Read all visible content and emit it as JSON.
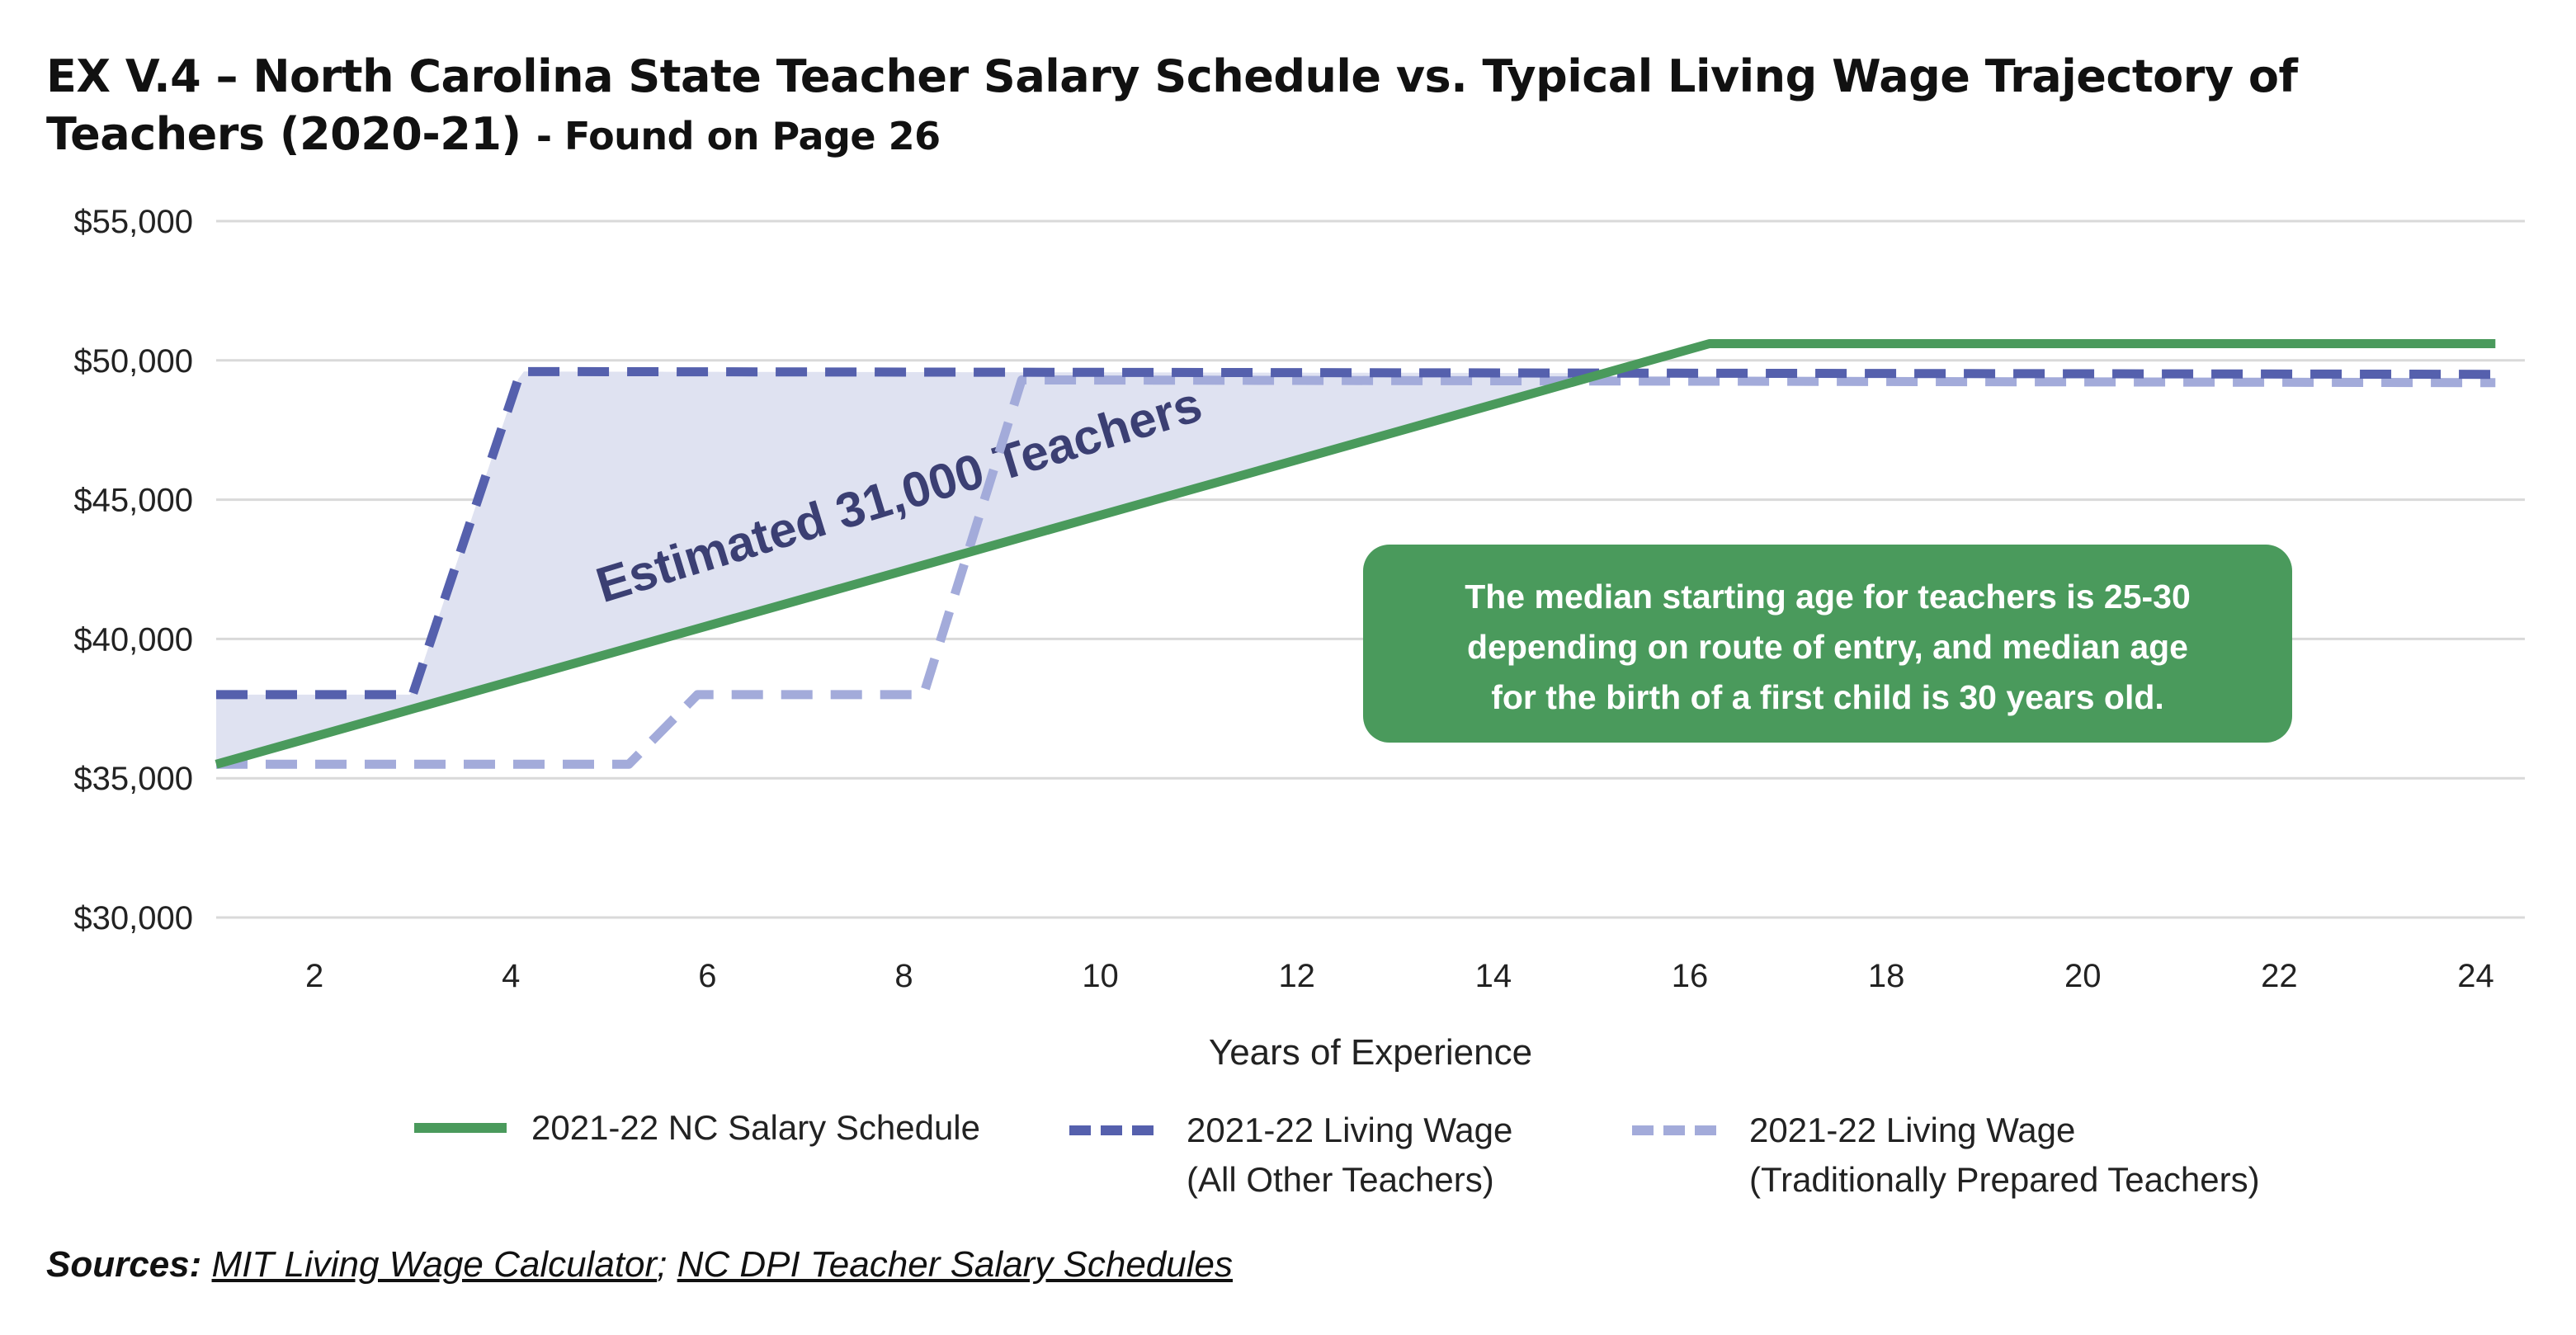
{
  "title": {
    "main": "EX V.4 – North Carolina State Teacher Salary Schedule vs. Typical Living Wage Trajectory of Teachers (2020-21)",
    "suffix": "- Found on Page 26"
  },
  "chart_data": {
    "type": "line",
    "xlabel": "Years of Experience",
    "ylabel": "",
    "xlim": [
      1,
      24.5
    ],
    "ylim": [
      30000,
      55000
    ],
    "x_ticks": [
      2,
      4,
      6,
      8,
      10,
      12,
      14,
      16,
      18,
      20,
      22,
      24
    ],
    "y_ticks": [
      30000,
      35000,
      40000,
      45000,
      50000,
      55000
    ],
    "y_tick_labels": [
      "$30,000",
      "$35,000",
      "$40,000",
      "$45,000",
      "$50,000",
      "$55,000"
    ],
    "grid": "horizontal",
    "legend_position": "bottom",
    "series": [
      {
        "name": "2021-22 NC Salary Schedule",
        "style": "solid",
        "color": "#4a9a5c",
        "x": [
          1,
          16.2,
          24.2
        ],
        "y": [
          35500,
          50600,
          50600
        ]
      },
      {
        "name": "2021-22 Living Wage (All Other Teachers)",
        "style": "dashed",
        "color": "#5560ad",
        "x": [
          1,
          3,
          4.1,
          24.2
        ],
        "y": [
          38000,
          38000,
          49600,
          49500
        ]
      },
      {
        "name": "2021-22 Living Wage (Traditionally Prepared Teachers)",
        "style": "dashed",
        "color": "#a3abda",
        "x": [
          1,
          5.2,
          5.9,
          8.2,
          9.2,
          24.2
        ],
        "y": [
          35500,
          35500,
          38000,
          38000,
          49300,
          49200
        ]
      }
    ],
    "shaded_area": {
      "label": "Estimated 31,000 Teachers",
      "between": [
        "2021-22 Living Wage (All Other Teachers)",
        "2021-22 NC Salary Schedule"
      ],
      "color": "#dfe2f1"
    },
    "annotation": {
      "lines": [
        "The median starting age for teachers is 25-30",
        "depending on route of entry, and median age",
        "for the birth of a first child is 30 years old."
      ],
      "color": "#4a9a5c"
    },
    "legend": [
      {
        "label_lines": [
          "2021-22 NC Salary Schedule"
        ],
        "series": 0
      },
      {
        "label_lines": [
          "2021-22 Living Wage",
          "(All Other Teachers)"
        ],
        "series": 1
      },
      {
        "label_lines": [
          "2021-22 Living Wage",
          "(Traditionally Prepared Teachers)"
        ],
        "series": 2
      }
    ]
  },
  "sources": {
    "label": "Sources:",
    "links": [
      "MIT Living Wage Calculator",
      "NC DPI Teacher Salary Schedules"
    ],
    "separator": ";"
  }
}
